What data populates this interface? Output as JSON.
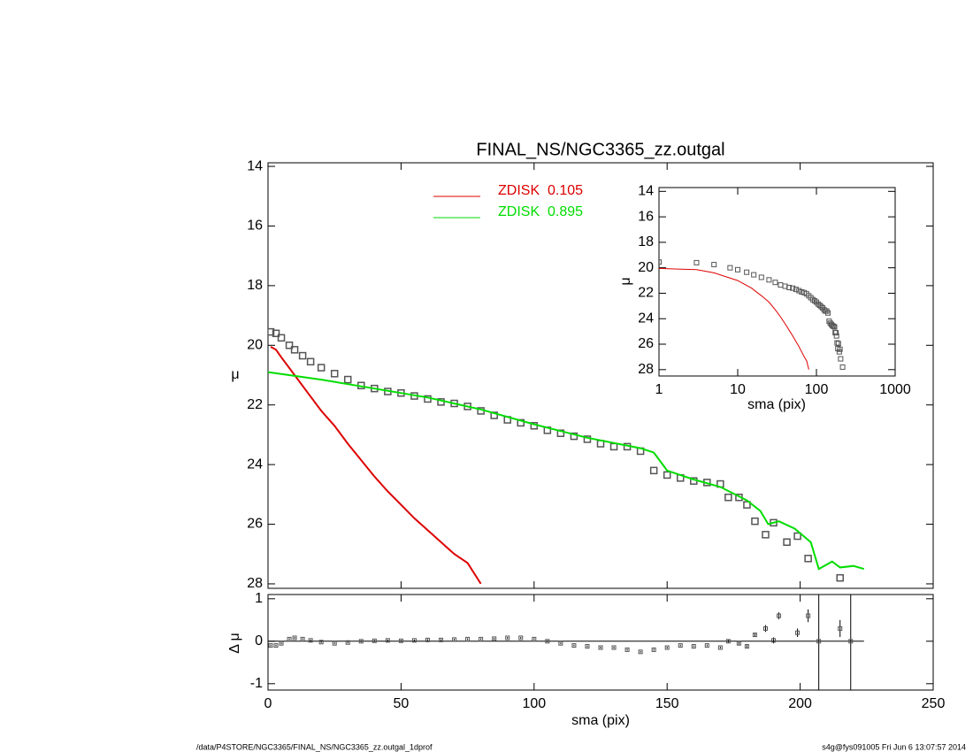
{
  "chart_data": [
    {
      "type": "profile",
      "title": "FINAL_NS/NGC3365_zz.outgal",
      "y_label": "μ",
      "xlim": [
        0,
        250
      ],
      "ylim": [
        28.15,
        13.88
      ],
      "yticks": [
        14,
        16,
        18,
        20,
        22,
        24,
        26,
        28
      ],
      "series": [
        {
          "color": "#555555",
          "marker": "square",
          "x": [
            1,
            3,
            5,
            8,
            10,
            13,
            16,
            20,
            25,
            30,
            35,
            40,
            45,
            50,
            55,
            60,
            65,
            70,
            75,
            80,
            85,
            90,
            95,
            100,
            105,
            110,
            115,
            120,
            125,
            130,
            135,
            140,
            145,
            150,
            155,
            160,
            165,
            170,
            173,
            177,
            180,
            183,
            187,
            190,
            195,
            199,
            203,
            215
          ],
          "values": [
            19.55,
            19.6,
            19.75,
            20.0,
            20.15,
            20.35,
            20.55,
            20.75,
            20.95,
            21.15,
            21.35,
            21.45,
            21.55,
            21.6,
            21.7,
            21.8,
            21.9,
            21.95,
            22.05,
            22.2,
            22.35,
            22.5,
            22.6,
            22.7,
            22.85,
            22.95,
            23.05,
            23.15,
            23.3,
            23.4,
            23.4,
            23.55,
            24.2,
            24.35,
            24.45,
            24.55,
            24.6,
            24.65,
            25.1,
            25.1,
            25.35,
            25.9,
            26.35,
            25.95,
            26.6,
            26.4,
            27.15,
            27.8
          ]
        },
        {
          "name": "ZDISK  0.105",
          "color": "#dd0000",
          "marker": "line",
          "x": [
            1,
            3,
            5,
            10,
            15,
            20,
            25,
            30,
            35,
            40,
            45,
            50,
            55,
            60,
            65,
            70,
            75,
            80
          ],
          "values": [
            20.05,
            20.15,
            20.4,
            21.0,
            21.6,
            22.2,
            22.7,
            23.3,
            23.85,
            24.4,
            24.9,
            25.35,
            25.8,
            26.2,
            26.6,
            27.0,
            27.3,
            28.0
          ]
        },
        {
          "name": "ZDISK  0.895",
          "color": "#00dd00",
          "marker": "line",
          "x": [
            0,
            20,
            40,
            60,
            80,
            100,
            120,
            140,
            145,
            150,
            160,
            170,
            180,
            185,
            188,
            192,
            198,
            204,
            207,
            212,
            215,
            220,
            224
          ],
          "values": [
            20.9,
            21.15,
            21.45,
            21.75,
            22.15,
            22.65,
            23.1,
            23.45,
            23.6,
            24.2,
            24.5,
            24.75,
            25.2,
            25.55,
            26.0,
            25.9,
            26.15,
            26.6,
            27.5,
            27.25,
            27.45,
            27.4,
            27.5
          ]
        }
      ]
    },
    {
      "type": "residual",
      "x_label": "sma (pix)",
      "y_label": "Δ μ",
      "xlim": [
        0,
        250
      ],
      "xticks": [
        0,
        50,
        100,
        150,
        200,
        250
      ],
      "ylim": [
        -1.15,
        1.1
      ],
      "yticks": [
        -1,
        0,
        1
      ],
      "x": [
        1,
        3,
        5,
        8,
        10,
        13,
        16,
        20,
        25,
        30,
        35,
        40,
        45,
        50,
        55,
        60,
        65,
        70,
        75,
        80,
        85,
        90,
        95,
        100,
        105,
        110,
        115,
        120,
        125,
        130,
        135,
        140,
        145,
        150,
        155,
        160,
        165,
        170,
        173,
        177,
        180,
        183,
        187,
        190,
        192,
        199,
        203,
        207,
        215,
        219
      ],
      "values": [
        -0.1,
        -0.1,
        -0.05,
        0.05,
        0.08,
        0.05,
        0.02,
        -0.02,
        -0.05,
        -0.03,
        0,
        0.01,
        0.02,
        0.01,
        0.02,
        0.03,
        0.03,
        0.04,
        0.05,
        0.05,
        0.06,
        0.08,
        0.08,
        0.05,
        0,
        -0.05,
        -0.1,
        -0.12,
        -0.15,
        -0.15,
        -0.2,
        -0.25,
        -0.2,
        -0.15,
        -0.1,
        -0.12,
        -0.1,
        -0.15,
        0,
        -0.05,
        -0.12,
        0.15,
        0.3,
        0.02,
        0.6,
        0.2,
        0.6,
        0,
        0.3,
        0
      ],
      "errors": [
        0.02,
        0.02,
        0.02,
        0.02,
        0.02,
        0.02,
        0.02,
        0.02,
        0.02,
        0.02,
        0.02,
        0.02,
        0.02,
        0.02,
        0.02,
        0.02,
        0.02,
        0.02,
        0.02,
        0.02,
        0.02,
        0.02,
        0.02,
        0.02,
        0.02,
        0.02,
        0.02,
        0.02,
        0.02,
        0.02,
        0.02,
        0.02,
        0.02,
        0.02,
        0.02,
        0.02,
        0.02,
        0.02,
        0.03,
        0.03,
        0.03,
        0.05,
        0.08,
        0.07,
        0.08,
        0.1,
        0.15,
        3,
        0.2,
        3
      ]
    },
    {
      "type": "inset",
      "x_label": "sma (pix)",
      "y_label": "μ",
      "log_x": true,
      "xlim": [
        1,
        1000
      ],
      "xticks": [
        1,
        10,
        100,
        1000
      ],
      "ylim": [
        28.5,
        13.7
      ],
      "yticks": [
        14,
        16,
        18,
        20,
        22,
        24,
        26,
        28
      ]
    }
  ],
  "footer": {
    "left": "/data/P4STORE/NGC3365/FINAL_NS/NGC3365_zz.outgal_1dprof",
    "right": "s4g@fys091005  Fri Jun  6 13:07:57 2014"
  }
}
